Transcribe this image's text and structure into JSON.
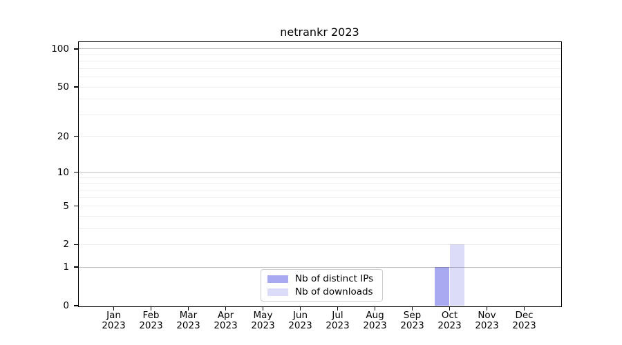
{
  "chart_data": {
    "type": "bar",
    "title": "netrankr 2023",
    "x_axis": {
      "months": [
        "Jan",
        "Feb",
        "Mar",
        "Apr",
        "May",
        "Jun",
        "Jul",
        "Aug",
        "Sep",
        "Oct",
        "Nov",
        "Dec"
      ],
      "year": "2023"
    },
    "y_axis": {
      "scale": "log1p",
      "tick_labels": [
        100,
        50,
        20,
        10,
        5,
        2,
        1,
        0
      ],
      "top": 114,
      "major_gridlines": [
        1,
        10,
        100
      ],
      "minor_gridlines": [
        2,
        3,
        4,
        5,
        6,
        7,
        8,
        9,
        20,
        30,
        40,
        50,
        60,
        70,
        80,
        90
      ]
    },
    "series": [
      {
        "name": "Nb of distinct IPs",
        "color": "#a9a9f1",
        "values": [
          0,
          0,
          0,
          0,
          0,
          0,
          0,
          0,
          0,
          1,
          0,
          0
        ]
      },
      {
        "name": "Nb of downloads",
        "color": "#dcdcf8",
        "values": [
          0,
          0,
          0,
          0,
          0,
          0,
          0,
          0,
          0,
          2,
          0,
          0
        ]
      }
    ],
    "legend_position": "lower center",
    "grid": true
  },
  "colors": {
    "background": "#ffffff",
    "spine": "#000000",
    "grid_minor": "#efefef",
    "grid_major": "#c0c0c0",
    "tick_label": "#000000",
    "legend_border": "#cccccc"
  }
}
